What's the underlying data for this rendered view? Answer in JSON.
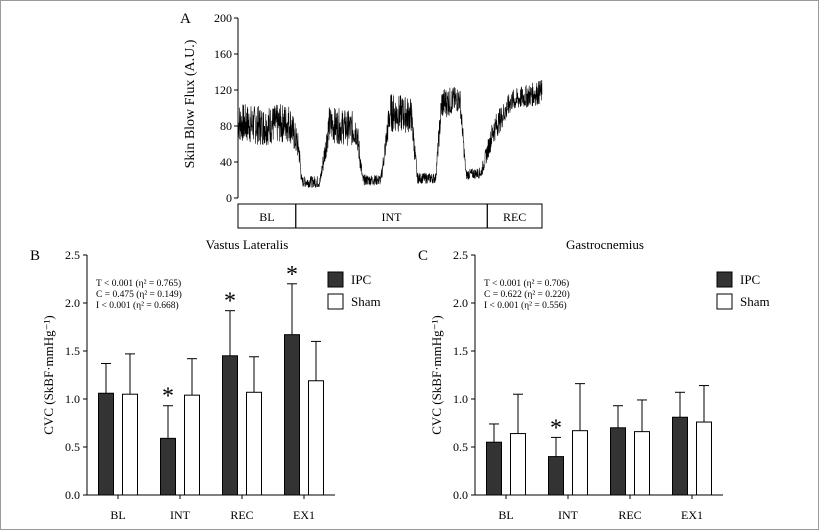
{
  "chart_data": [
    {
      "panel": "A",
      "type": "line",
      "ylabel": "Skin Blow Flux (A.U.)",
      "ylim": [
        0,
        200
      ],
      "yticks": [
        0,
        40,
        80,
        120,
        160,
        200
      ],
      "time_range": [
        0,
        100
      ],
      "segments": [
        {
          "label": "BL",
          "start": 0,
          "end": 19
        },
        {
          "label": "INT",
          "start": 19,
          "end": 82
        },
        {
          "label": "REC",
          "start": 82,
          "end": 100
        }
      ],
      "trace": [
        {
          "t": 0,
          "level": 84,
          "noise": 22
        },
        {
          "t": 8,
          "level": 80,
          "noise": 22
        },
        {
          "t": 17,
          "level": 84,
          "noise": 22
        },
        {
          "t": 20,
          "level": 55,
          "noise": 15
        },
        {
          "t": 21,
          "level": 18,
          "noise": 6
        },
        {
          "t": 27,
          "level": 18,
          "noise": 7
        },
        {
          "t": 30,
          "level": 82,
          "noise": 20
        },
        {
          "t": 39,
          "level": 76,
          "noise": 20
        },
        {
          "t": 41,
          "level": 20,
          "noise": 6
        },
        {
          "t": 47,
          "level": 20,
          "noise": 6
        },
        {
          "t": 50,
          "level": 95,
          "noise": 22
        },
        {
          "t": 57,
          "level": 92,
          "noise": 20
        },
        {
          "t": 59,
          "level": 22,
          "noise": 6
        },
        {
          "t": 65,
          "level": 22,
          "noise": 6
        },
        {
          "t": 67,
          "level": 105,
          "noise": 18
        },
        {
          "t": 73,
          "level": 110,
          "noise": 14
        },
        {
          "t": 75,
          "level": 26,
          "noise": 6
        },
        {
          "t": 80,
          "level": 28,
          "noise": 6
        },
        {
          "t": 84,
          "level": 75,
          "noise": 15
        },
        {
          "t": 90,
          "level": 108,
          "noise": 12
        },
        {
          "t": 100,
          "level": 118,
          "noise": 14
        }
      ]
    },
    {
      "panel": "B",
      "type": "bar",
      "title": "Vastus Lateralis",
      "ylabel": "CVC (SkBF·mmHg⁻¹)",
      "ylim": [
        0,
        2.5
      ],
      "yticks": [
        "0.0",
        "0.5",
        "1.0",
        "1.5",
        "2.0",
        "2.5"
      ],
      "categories": [
        "BL",
        "INT",
        "REC",
        "EX1"
      ],
      "series": [
        {
          "name": "IPC",
          "color": "#333333",
          "values": [
            1.06,
            0.59,
            1.45,
            1.67
          ],
          "sd": [
            0.31,
            0.34,
            0.47,
            0.53
          ],
          "significant": [
            false,
            true,
            true,
            true
          ]
        },
        {
          "name": "Sham",
          "color": "#ffffff",
          "values": [
            1.05,
            1.04,
            1.07,
            1.19
          ],
          "sd": [
            0.42,
            0.38,
            0.37,
            0.41
          ],
          "significant": [
            false,
            false,
            false,
            false
          ]
        }
      ],
      "stats": [
        "T < 0.001 (η² = 0.765)",
        "C = 0.475 (η² = 0.149)",
        "I < 0.001 (η² = 0.668)"
      ],
      "legend_position": "top-right"
    },
    {
      "panel": "C",
      "type": "bar",
      "title": "Gastrocnemius",
      "ylabel": "CVC (SkBF·mmHg⁻¹)",
      "ylim": [
        0,
        2.5
      ],
      "yticks": [
        "0.0",
        "0.5",
        "1.0",
        "1.5",
        "2.0",
        "2.5"
      ],
      "categories": [
        "BL",
        "INT",
        "REC",
        "EX1"
      ],
      "series": [
        {
          "name": "IPC",
          "color": "#333333",
          "values": [
            0.55,
            0.4,
            0.7,
            0.81
          ],
          "sd": [
            0.19,
            0.2,
            0.23,
            0.26
          ],
          "significant": [
            false,
            true,
            false,
            false
          ]
        },
        {
          "name": "Sham",
          "color": "#ffffff",
          "values": [
            0.64,
            0.67,
            0.66,
            0.76
          ],
          "sd": [
            0.41,
            0.49,
            0.33,
            0.38
          ],
          "significant": [
            false,
            false,
            false,
            false
          ]
        }
      ],
      "stats": [
        "T < 0.001 (η² = 0.706)",
        "C = 0.622 (η² = 0.220)",
        "I < 0.001 (η² = 0.556)"
      ],
      "legend_position": "top-right"
    }
  ],
  "significance_marker": "*"
}
